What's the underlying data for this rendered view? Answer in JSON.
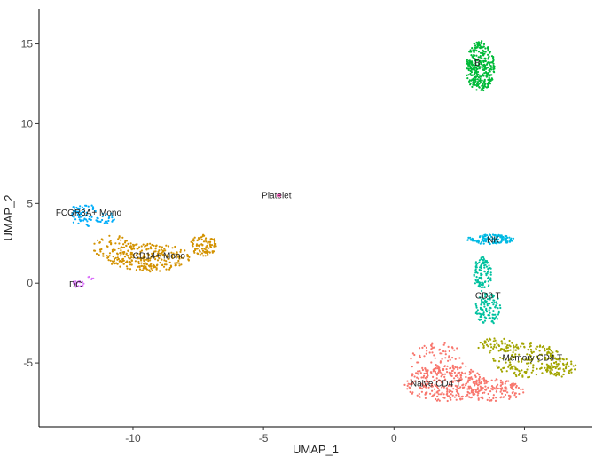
{
  "chart_data": {
    "type": "scatter",
    "xlabel": "UMAP_1",
    "ylabel": "UMAP_2",
    "xlim": [
      -13.6,
      7.6
    ],
    "ylim": [
      -9.0,
      17.2
    ],
    "xticks": [
      -10,
      -5,
      0,
      5
    ],
    "yticks": [
      -5,
      0,
      5,
      10,
      15
    ],
    "grid": false,
    "legend": "none",
    "series": [
      {
        "label": "Naive CD4 T",
        "color": "#F8766D",
        "n": 520,
        "label_pos": [
          1.6,
          -6.3
        ],
        "regions": [
          {
            "cx": 2.0,
            "cy": -6.3,
            "rx": 1.6,
            "ry": 1.1,
            "w": 0.55
          },
          {
            "cx": 1.7,
            "cy": -5.0,
            "rx": 1.1,
            "ry": 1.3,
            "w": 0.2
          },
          {
            "cx": 3.8,
            "cy": -6.7,
            "rx": 1.2,
            "ry": 0.7,
            "w": 0.25
          }
        ]
      },
      {
        "label": "Memory CD4 T",
        "color": "#A3A500",
        "n": 300,
        "label_pos": [
          5.3,
          -4.7
        ],
        "regions": [
          {
            "cx": 5.1,
            "cy": -4.8,
            "rx": 1.3,
            "ry": 1.1,
            "w": 0.65
          },
          {
            "cx": 3.9,
            "cy": -3.9,
            "rx": 0.7,
            "ry": 0.5,
            "w": 0.15
          },
          {
            "cx": 6.4,
            "cy": -5.3,
            "rx": 0.6,
            "ry": 0.6,
            "w": 0.2
          }
        ]
      },
      {
        "label": "CD14+ Mono",
        "color": "#D39200",
        "n": 420,
        "label_pos": [
          -9.0,
          1.7
        ],
        "regions": [
          {
            "cx": -9.4,
            "cy": 1.6,
            "rx": 1.6,
            "ry": 0.9,
            "w": 0.6
          },
          {
            "cx": -10.8,
            "cy": 2.3,
            "rx": 0.8,
            "ry": 0.7,
            "w": 0.15
          },
          {
            "cx": -7.3,
            "cy": 2.4,
            "rx": 0.5,
            "ry": 0.7,
            "w": 0.25
          }
        ]
      },
      {
        "label": "B",
        "color": "#00BA38",
        "n": 340,
        "label_pos": [
          3.2,
          13.8
        ],
        "regions": [
          {
            "cx": 3.3,
            "cy": 13.6,
            "rx": 0.55,
            "ry": 1.6,
            "w": 1.0
          }
        ]
      },
      {
        "label": "CD8 T",
        "color": "#00C19F",
        "n": 230,
        "label_pos": [
          3.6,
          -0.8
        ],
        "regions": [
          {
            "cx": 3.4,
            "cy": 0.6,
            "rx": 0.35,
            "ry": 1.1,
            "w": 0.45
          },
          {
            "cx": 3.6,
            "cy": -1.6,
            "rx": 0.5,
            "ry": 1.0,
            "w": 0.55
          }
        ]
      },
      {
        "label": "NK",
        "color": "#00B9E3",
        "n": 140,
        "label_pos": [
          3.8,
          2.7
        ],
        "regions": [
          {
            "cx": 3.7,
            "cy": 2.75,
            "rx": 0.9,
            "ry": 0.3,
            "w": 1.0
          }
        ]
      },
      {
        "label": "FCGR3A+ Mono",
        "color": "#00ADFA",
        "n": 90,
        "label_pos": [
          -11.7,
          4.4
        ],
        "regions": [
          {
            "cx": -11.9,
            "cy": 4.3,
            "rx": 0.5,
            "ry": 0.8,
            "w": 0.8
          },
          {
            "cx": -11.1,
            "cy": 4.1,
            "rx": 0.4,
            "ry": 0.4,
            "w": 0.2
          }
        ]
      },
      {
        "label": "DC",
        "color": "#DB72FB",
        "n": 26,
        "label_pos": [
          -12.2,
          -0.1
        ],
        "regions": [
          {
            "cx": -12.1,
            "cy": -0.05,
            "rx": 0.25,
            "ry": 0.2,
            "w": 0.8
          },
          {
            "cx": -11.6,
            "cy": 0.3,
            "rx": 0.15,
            "ry": 0.15,
            "w": 0.2
          }
        ]
      },
      {
        "label": "Platelet",
        "color": "#FF61C3",
        "n": 8,
        "label_pos": [
          -4.5,
          5.5
        ],
        "regions": [
          {
            "cx": -4.4,
            "cy": 5.5,
            "rx": 0.08,
            "ry": 0.06,
            "w": 1.0
          }
        ]
      }
    ]
  }
}
